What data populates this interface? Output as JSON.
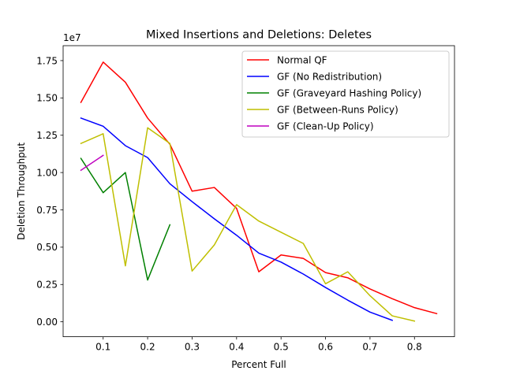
{
  "chart_data": {
    "type": "line",
    "title": "Mixed Insertions and Deletions: Deletes",
    "xlabel": "Percent Full",
    "ylabel": "Deletion Throughput",
    "y_scale_label": "1e7",
    "xlim": [
      0.01,
      0.89
    ],
    "ylim": [
      -1000000,
      18500000
    ],
    "x_ticks": [
      0.1,
      0.2,
      0.3,
      0.4,
      0.5,
      0.6,
      0.7,
      0.8
    ],
    "x_tick_labels": [
      "0.1",
      "0.2",
      "0.3",
      "0.4",
      "0.5",
      "0.6",
      "0.7",
      "0.8"
    ],
    "y_ticks": [
      0,
      2500000,
      5000000,
      7500000,
      10000000,
      12500000,
      15000000,
      17500000
    ],
    "y_tick_labels": [
      "0.00",
      "0.25",
      "0.50",
      "0.75",
      "1.00",
      "1.25",
      "1.50",
      "1.75"
    ],
    "grid": false,
    "legend_position": "top-right",
    "series": [
      {
        "name": "Normal QF",
        "color": "#ff0000",
        "x": [
          0.05,
          0.1,
          0.15,
          0.2,
          0.25,
          0.3,
          0.35,
          0.4,
          0.45,
          0.5,
          0.55,
          0.6,
          0.65,
          0.7,
          0.75,
          0.8,
          0.85
        ],
        "y": [
          14700000,
          17400000,
          16050000,
          13650000,
          11900000,
          8750000,
          9000000,
          7600000,
          3350000,
          4480000,
          4250000,
          3300000,
          2950000,
          2200000,
          1550000,
          950000,
          550000
        ]
      },
      {
        "name": "GF (No Redistribution)",
        "color": "#0000ff",
        "x": [
          0.05,
          0.1,
          0.15,
          0.2,
          0.25,
          0.3,
          0.35,
          0.4,
          0.45,
          0.5,
          0.55,
          0.6,
          0.65,
          0.7,
          0.75
        ],
        "y": [
          13650000,
          13100000,
          11800000,
          11000000,
          9250000,
          8050000,
          6900000,
          5800000,
          4600000,
          4000000,
          3200000,
          2300000,
          1450000,
          650000,
          100000
        ]
      },
      {
        "name": "GF (Graveyard Hashing Policy)",
        "color": "#008000",
        "x": [
          0.05,
          0.1,
          0.15,
          0.2,
          0.25
        ],
        "y": [
          10950000,
          8650000,
          10000000,
          2800000,
          6500000
        ]
      },
      {
        "name": "GF (Between-Runs Policy)",
        "color": "#bfbf00",
        "x": [
          0.05,
          0.1,
          0.15,
          0.2,
          0.25,
          0.3,
          0.35,
          0.4,
          0.45,
          0.5,
          0.55,
          0.6,
          0.65,
          0.7,
          0.75,
          0.8
        ],
        "y": [
          11950000,
          12600000,
          3750000,
          13000000,
          11950000,
          3400000,
          5150000,
          7850000,
          6750000,
          6000000,
          5250000,
          2550000,
          3350000,
          1750000,
          400000,
          50000
        ]
      },
      {
        "name": "GF (Clean-Up Policy)",
        "color": "#bf00bf",
        "x": [
          0.05,
          0.1
        ],
        "y": [
          10150000,
          11150000
        ]
      }
    ]
  }
}
